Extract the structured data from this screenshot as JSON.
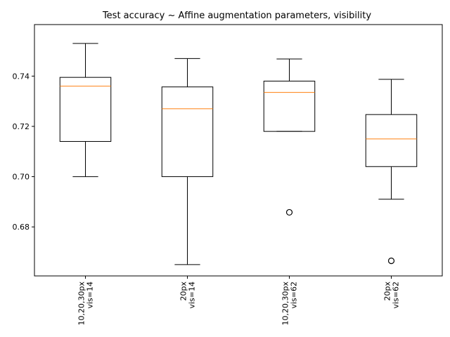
{
  "chart_data": {
    "type": "boxplot",
    "title": "Test accuracy ~ Affine augmentation parameters, visibility",
    "xlabel": "",
    "ylabel": "",
    "ylim": [
      0.6605,
      0.7605
    ],
    "yticks": [
      0.68,
      0.7,
      0.72,
      0.74
    ],
    "grid": false,
    "categories": [
      [
        "10,20,30px",
        "vis=14"
      ],
      [
        "20px",
        "vis=14"
      ],
      [
        "10,20,30px",
        "vis=62"
      ],
      [
        "20px",
        "vis=62"
      ]
    ],
    "boxes": [
      {
        "whisker_low": 0.7,
        "q1": 0.714,
        "median": 0.736,
        "q3": 0.7395,
        "whisker_high": 0.753,
        "outliers": []
      },
      {
        "whisker_low": 0.665,
        "q1": 0.7,
        "median": 0.727,
        "q3": 0.7357,
        "whisker_high": 0.747,
        "outliers": []
      },
      {
        "whisker_low": 0.718,
        "q1": 0.718,
        "median": 0.7335,
        "q3": 0.738,
        "whisker_high": 0.7468,
        "outliers": [
          0.6858
        ]
      },
      {
        "whisker_low": 0.691,
        "q1": 0.704,
        "median": 0.715,
        "q3": 0.7247,
        "whisker_high": 0.7387,
        "outliers": [
          0.6665
        ]
      }
    ],
    "colors": {
      "box": "#000000",
      "median": "#ff7f0e",
      "outlier_edge": "#000000"
    }
  }
}
